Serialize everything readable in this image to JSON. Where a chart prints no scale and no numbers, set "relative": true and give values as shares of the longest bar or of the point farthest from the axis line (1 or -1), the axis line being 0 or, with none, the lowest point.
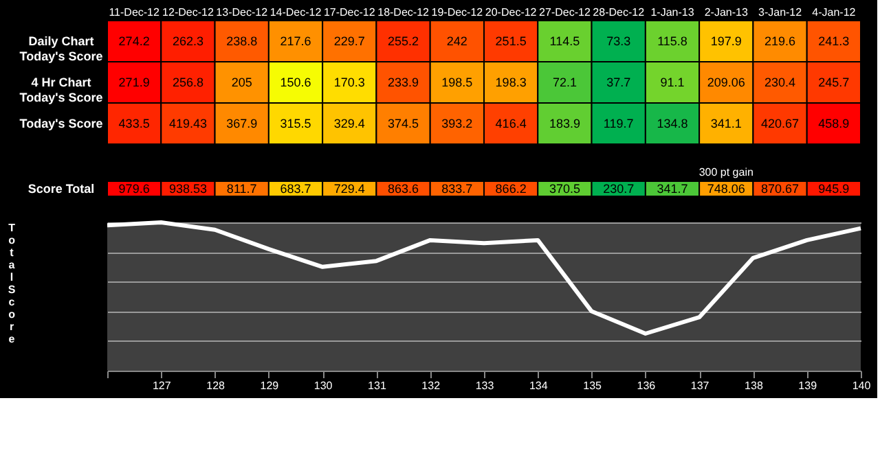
{
  "chart_data": [
    {
      "type": "heatmap",
      "categories": [
        "11-Dec-12",
        "12-Dec-12",
        "13-Dec-12",
        "14-Dec-12",
        "17-Dec-12",
        "18-Dec-12",
        "19-Dec-12",
        "20-Dec-12",
        "27-Dec-12",
        "28-Dec-12",
        "1-Jan-13",
        "2-Jan-13",
        "3-Jan-12",
        "4-Jan-12"
      ],
      "y_categories": [
        "Daily Chart\nToday's Score",
        "4 Hr Chart\nToday's Score",
        "Today's Score"
      ],
      "cells": [
        [
          274.2,
          262.3,
          238.8,
          217.6,
          229.7,
          255.2,
          242,
          251.5,
          114.5,
          73.3,
          115.8,
          197.9,
          219.6,
          241.3
        ],
        [
          271.9,
          256.8,
          205,
          150.6,
          170.3,
          233.9,
          198.5,
          198.3,
          72.1,
          37.7,
          91.1,
          209.06,
          230.4,
          245.7
        ],
        [
          433.5,
          419.43,
          367.9,
          315.5,
          329.4,
          374.5,
          393.2,
          416.4,
          183.9,
          119.7,
          134.8,
          341.1,
          420.67,
          458.9
        ]
      ],
      "colors": [
        "#00b050",
        "#ffff00",
        "#ff0000"
      ],
      "data_labels": true
    },
    {
      "type": "heatmap",
      "categories": [
        null,
        null,
        null,
        null,
        null,
        null,
        null,
        null,
        null,
        null,
        null,
        null,
        null,
        null
      ],
      "y_categories": [
        "Score Total"
      ],
      "cells": [
        [
          979.6,
          938.53,
          811.7,
          683.7,
          729.4,
          863.6,
          833.7,
          866.2,
          370.5,
          230.7,
          341.7,
          748.06,
          870.67,
          945.9
        ]
      ],
      "colors": [
        "#00b050",
        "#ffff00",
        "#ff0000"
      ],
      "tick_labels": "y",
      "data_labels": true,
      "annotations": [
        "300 pt gain"
      ]
    },
    {
      "type": "line",
      "relative": true,
      "ylabel": "Total Score",
      "grid": "y",
      "line_style": "solid",
      "categories": [
        null,
        "127",
        "128",
        "129",
        "130",
        "131",
        "132",
        "133",
        "134",
        "135",
        "136",
        "137",
        "138",
        "139",
        "140"
      ],
      "series": [
        {
          "color": "#ffffff",
          "values": [
            0.98,
            1.0,
            0.95,
            0.82,
            0.7,
            0.74,
            0.88,
            0.86,
            0.88,
            0.4,
            0.25,
            0.36,
            0.76,
            0.88,
            0.96
          ]
        }
      ]
    }
  ]
}
